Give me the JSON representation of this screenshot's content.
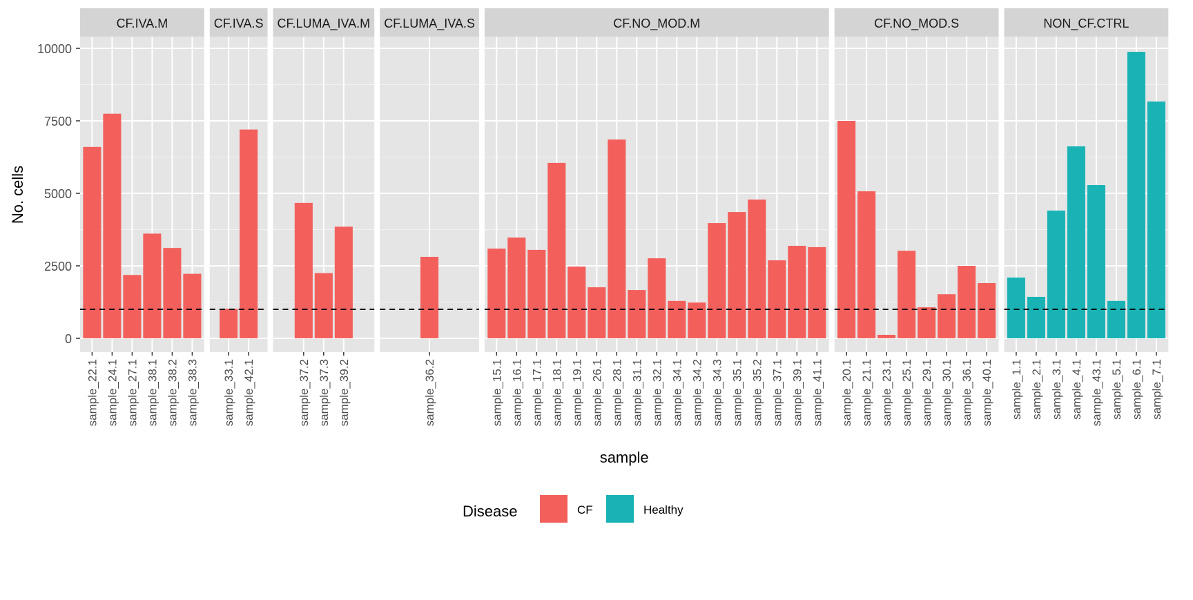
{
  "chart_data": {
    "type": "bar",
    "faceted": true,
    "title": "",
    "xlabel": "sample",
    "ylabel": "No. cells",
    "ylim": [
      0,
      10000
    ],
    "yticks": [
      0,
      2500,
      5000,
      7500,
      10000
    ],
    "grid": true,
    "reference_line": {
      "y": 1000,
      "style": "dashed",
      "color": "#000000"
    },
    "legend": {
      "title": "Disease",
      "position": "bottom",
      "entries": [
        {
          "label": "CF",
          "color": "#F8766D"
        },
        {
          "label": "Healthy",
          "color": "#00BFC4"
        }
      ]
    },
    "colors": {
      "CF": "#F3605C",
      "Healthy": "#19B3B6",
      "panel": "#E5E5E5",
      "strip": "#D4D4D4"
    },
    "facets": [
      {
        "label": "CF.IVA.M",
        "disease": "CF",
        "categories": [
          "sample_22.1",
          "sample_24.1",
          "sample_27.1",
          "sample_38.1",
          "sample_38.2",
          "sample_38.3"
        ],
        "values": [
          6600,
          7745,
          2185,
          3610,
          3115,
          2225
        ]
      },
      {
        "label": "CF.IVA.S",
        "disease": "CF",
        "categories": [
          "sample_33.1",
          "sample_42.1"
        ],
        "values": [
          1020,
          7200
        ]
      },
      {
        "label": "CF.LUMA_IVA.M",
        "disease": "CF",
        "categories": [
          "sample_37.2",
          "sample_37.3",
          "sample_39.2"
        ],
        "values": [
          4670,
          2250,
          3850
        ]
      },
      {
        "label": "CF.LUMA_IVA.S",
        "disease": "CF",
        "categories": [
          "sample_36.2"
        ],
        "values": [
          2810
        ]
      },
      {
        "label": "CF.NO_MOD.M",
        "disease": "CF",
        "categories": [
          "sample_15.1",
          "sample_16.1",
          "sample_17.1",
          "sample_18.1",
          "sample_19.1",
          "sample_26.1",
          "sample_28.1",
          "sample_31.1",
          "sample_32.1",
          "sample_34.1",
          "sample_34.2",
          "sample_34.3",
          "sample_35.1",
          "sample_35.2",
          "sample_37.1",
          "sample_39.1",
          "sample_41.1"
        ],
        "values": [
          3095,
          3475,
          3050,
          6050,
          2475,
          1760,
          6855,
          1665,
          2760,
          1290,
          1235,
          3975,
          4355,
          4785,
          2690,
          3190,
          3145
        ]
      },
      {
        "label": "CF.NO_MOD.S",
        "disease": "CF",
        "categories": [
          "sample_20.1",
          "sample_21.1",
          "sample_23.1",
          "sample_25.1",
          "sample_29.1",
          "sample_30.1",
          "sample_36.1",
          "sample_40.1"
        ],
        "values": [
          7500,
          5070,
          120,
          3020,
          1070,
          1520,
          2500,
          1905
        ]
      },
      {
        "label": "NON_CF.CTRL",
        "disease": "Healthy",
        "categories": [
          "sample_1.1",
          "sample_2.1",
          "sample_3.1",
          "sample_4.1",
          "sample_43.1",
          "sample_5.1",
          "sample_6.1",
          "sample_7.1"
        ],
        "values": [
          2095,
          1430,
          4405,
          6620,
          5285,
          1290,
          9880,
          8165
        ]
      }
    ]
  }
}
